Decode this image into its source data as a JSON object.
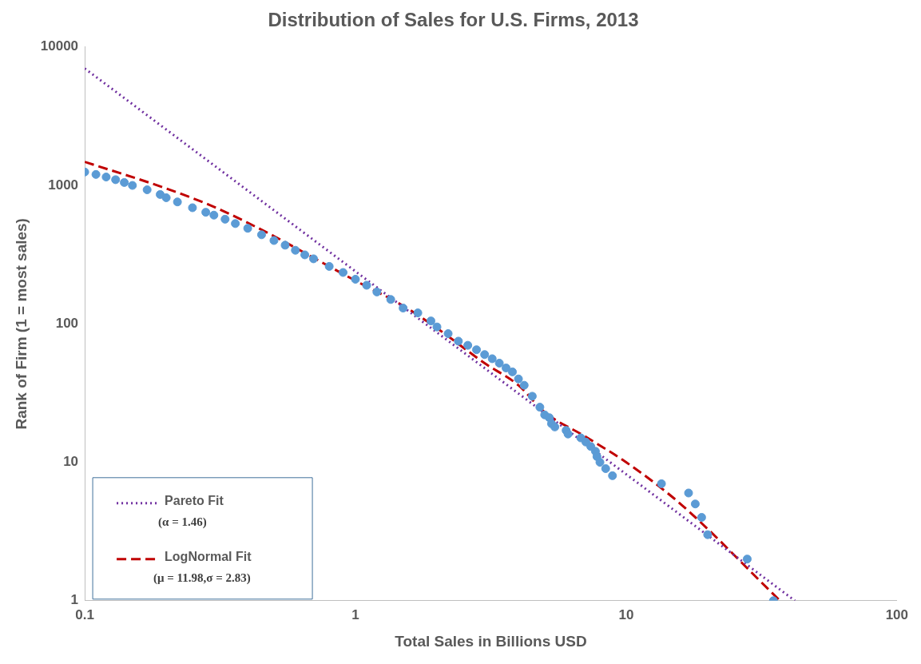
{
  "chart_data": {
    "type": "scatter",
    "title": "Distribution of Sales for U.S. Firms, 2013",
    "xlabel": "Total Sales in Billions USD",
    "ylabel": "Rank of Firm (1 = most sales)",
    "log": "xy",
    "xlim": [
      0.1,
      100
    ],
    "xticks": [
      0.1,
      1,
      10,
      100
    ],
    "ylim": [
      1,
      10000
    ],
    "yticks": [
      1,
      10,
      100,
      1000,
      10000
    ],
    "grid": false,
    "legend": "bottom left",
    "annotations": [
      "(α = 1.46)",
      "(μ = 11.98,σ = 2.83)"
    ],
    "series": [
      {
        "color": "#5b9bd5",
        "marker": "circle",
        "x": [
          0.1,
          0.11,
          0.12,
          0.13,
          0.14,
          0.15,
          0.17,
          0.19,
          0.2,
          0.22,
          0.25,
          0.28,
          0.3,
          0.33,
          0.36,
          0.4,
          0.45,
          0.5,
          0.55,
          0.6,
          0.65,
          0.7,
          0.8,
          0.9,
          1,
          1.1,
          1.2,
          1.35,
          1.5,
          1.7,
          1.9,
          2,
          2.2,
          2.4,
          2.6,
          2.8,
          3,
          3.2,
          3.4,
          3.6,
          3.8,
          4,
          4.2,
          4.5,
          4.8,
          5,
          5.2,
          5.3,
          5.45,
          6,
          6.1,
          6.8,
          7.1,
          7.4,
          7.7,
          7.8,
          8,
          8.4,
          8.9,
          13.5,
          17,
          18,
          19,
          20,
          28,
          35
        ],
        "values": [
          1250,
          1200,
          1150,
          1100,
          1050,
          1000,
          930,
          860,
          815,
          760,
          690,
          640,
          610,
          570,
          530,
          490,
          440,
          400,
          370,
          340,
          315,
          295,
          260,
          235,
          210,
          190,
          170,
          150,
          130,
          120,
          105,
          95,
          85,
          75,
          70,
          65,
          60,
          56,
          52,
          48,
          45,
          40,
          36,
          30,
          25,
          22,
          21,
          19,
          18,
          17,
          16,
          15,
          14,
          13,
          12,
          11,
          10,
          9,
          8,
          7,
          6,
          5,
          4,
          3,
          2,
          1
        ]
      },
      {
        "type": "line",
        "name": "Pareto Fit",
        "color": "#7030a0",
        "line_style": "dotted",
        "marker": "none",
        "x": [
          0.1,
          42
        ],
        "values": [
          7000,
          1
        ]
      },
      {
        "type": "line",
        "name": "LogNormal Fit",
        "color": "#c00000",
        "line_style": "dashed",
        "marker": "none",
        "x": [
          0.1,
          0.2,
          0.3,
          0.5,
          0.7,
          1,
          1.5,
          2,
          3,
          4,
          5,
          7,
          10,
          15,
          20,
          30,
          37
        ],
        "values": [
          1480,
          950,
          700,
          430,
          300,
          205,
          135,
          93,
          52,
          36,
          23,
          15.5,
          10,
          5.5,
          3.3,
          1.5,
          1
        ]
      }
    ]
  }
}
